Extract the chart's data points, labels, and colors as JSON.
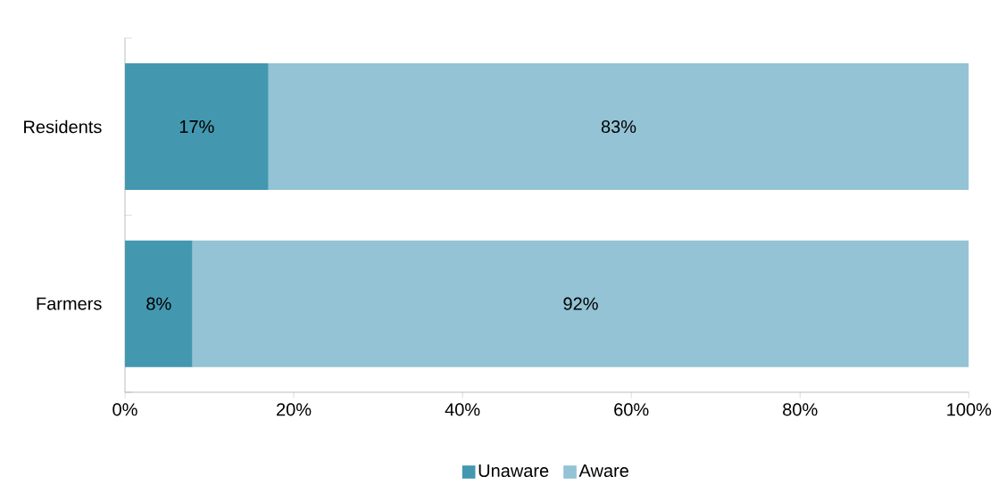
{
  "chart_data": {
    "type": "bar",
    "orientation": "horizontal",
    "stacked": true,
    "categories": [
      "Residents",
      "Farmers"
    ],
    "series": [
      {
        "name": "Unaware",
        "color": "#4398b0",
        "values": [
          17,
          8
        ],
        "value_labels": [
          "17%",
          "8%"
        ]
      },
      {
        "name": "Aware",
        "color": "#93c3d4",
        "values": [
          83,
          92
        ],
        "value_labels": [
          "83%",
          "92%"
        ]
      }
    ],
    "xlim": [
      0,
      100
    ],
    "xticks": [
      {
        "value": 0,
        "label": "0%"
      },
      {
        "value": 20,
        "label": "20%"
      },
      {
        "value": 40,
        "label": "40%"
      },
      {
        "value": 60,
        "label": "60%"
      },
      {
        "value": 80,
        "label": "80%"
      },
      {
        "value": 100,
        "label": "100%"
      }
    ],
    "grid": false,
    "legend": "bottom"
  }
}
